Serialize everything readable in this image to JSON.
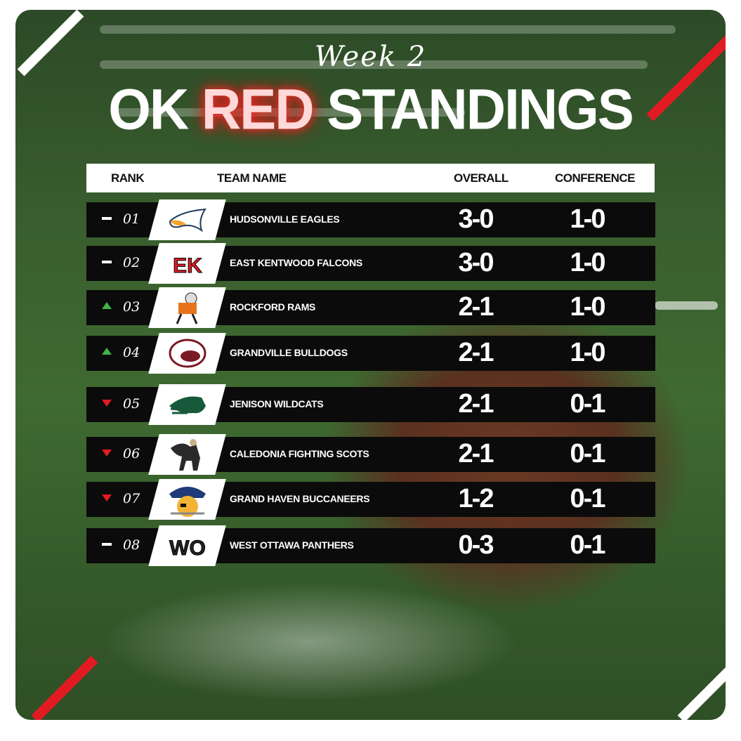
{
  "title": {
    "week": "Week 2",
    "prefix": "OK",
    "highlight": "RED",
    "suffix": "STANDINGS"
  },
  "header": {
    "rank": "RANK",
    "team": "TEAM NAME",
    "overall": "OVERALL",
    "conference": "CONFERENCE"
  },
  "colors": {
    "accent": "#e21b23",
    "up": "#3fb34a",
    "down": "#e21b23",
    "row": "#0b0b0b"
  },
  "rows": [
    {
      "change": "same",
      "rank": "01",
      "team": "HUDSONVILLE EAGLES",
      "overall": "3-0",
      "conference": "1-0",
      "logo": "eagle-logo"
    },
    {
      "change": "same",
      "rank": "02",
      "team": "EAST KENTWOOD FALCONS",
      "overall": "3-0",
      "conference": "1-0",
      "logo": "ek-falcons-logo",
      "logo_text": "EK"
    },
    {
      "change": "up",
      "rank": "03",
      "team": "ROCKFORD RAMS",
      "overall": "2-1",
      "conference": "1-0",
      "logo": "ram-logo"
    },
    {
      "change": "up",
      "rank": "04",
      "team": "GRANDVILLE BULLDOGS",
      "overall": "2-1",
      "conference": "1-0",
      "logo": "bulldog-logo"
    },
    {
      "change": "down",
      "rank": "05",
      "team": "JENISON WILDCATS",
      "overall": "2-1",
      "conference": "0-1",
      "logo": "wildcat-logo"
    },
    {
      "change": "down",
      "rank": "06",
      "team": "CALEDONIA FIGHTING SCOTS",
      "overall": "2-1",
      "conference": "0-1",
      "logo": "scot-logo"
    },
    {
      "change": "down",
      "rank": "07",
      "team": "GRAND HAVEN BUCCANEERS",
      "overall": "1-2",
      "conference": "0-1",
      "logo": "buccaneer-logo"
    },
    {
      "change": "same",
      "rank": "08",
      "team": "WEST OTTAWA PANTHERS",
      "overall": "0-3",
      "conference": "0-1",
      "logo": "wo-logo",
      "logo_text": "WO"
    }
  ]
}
